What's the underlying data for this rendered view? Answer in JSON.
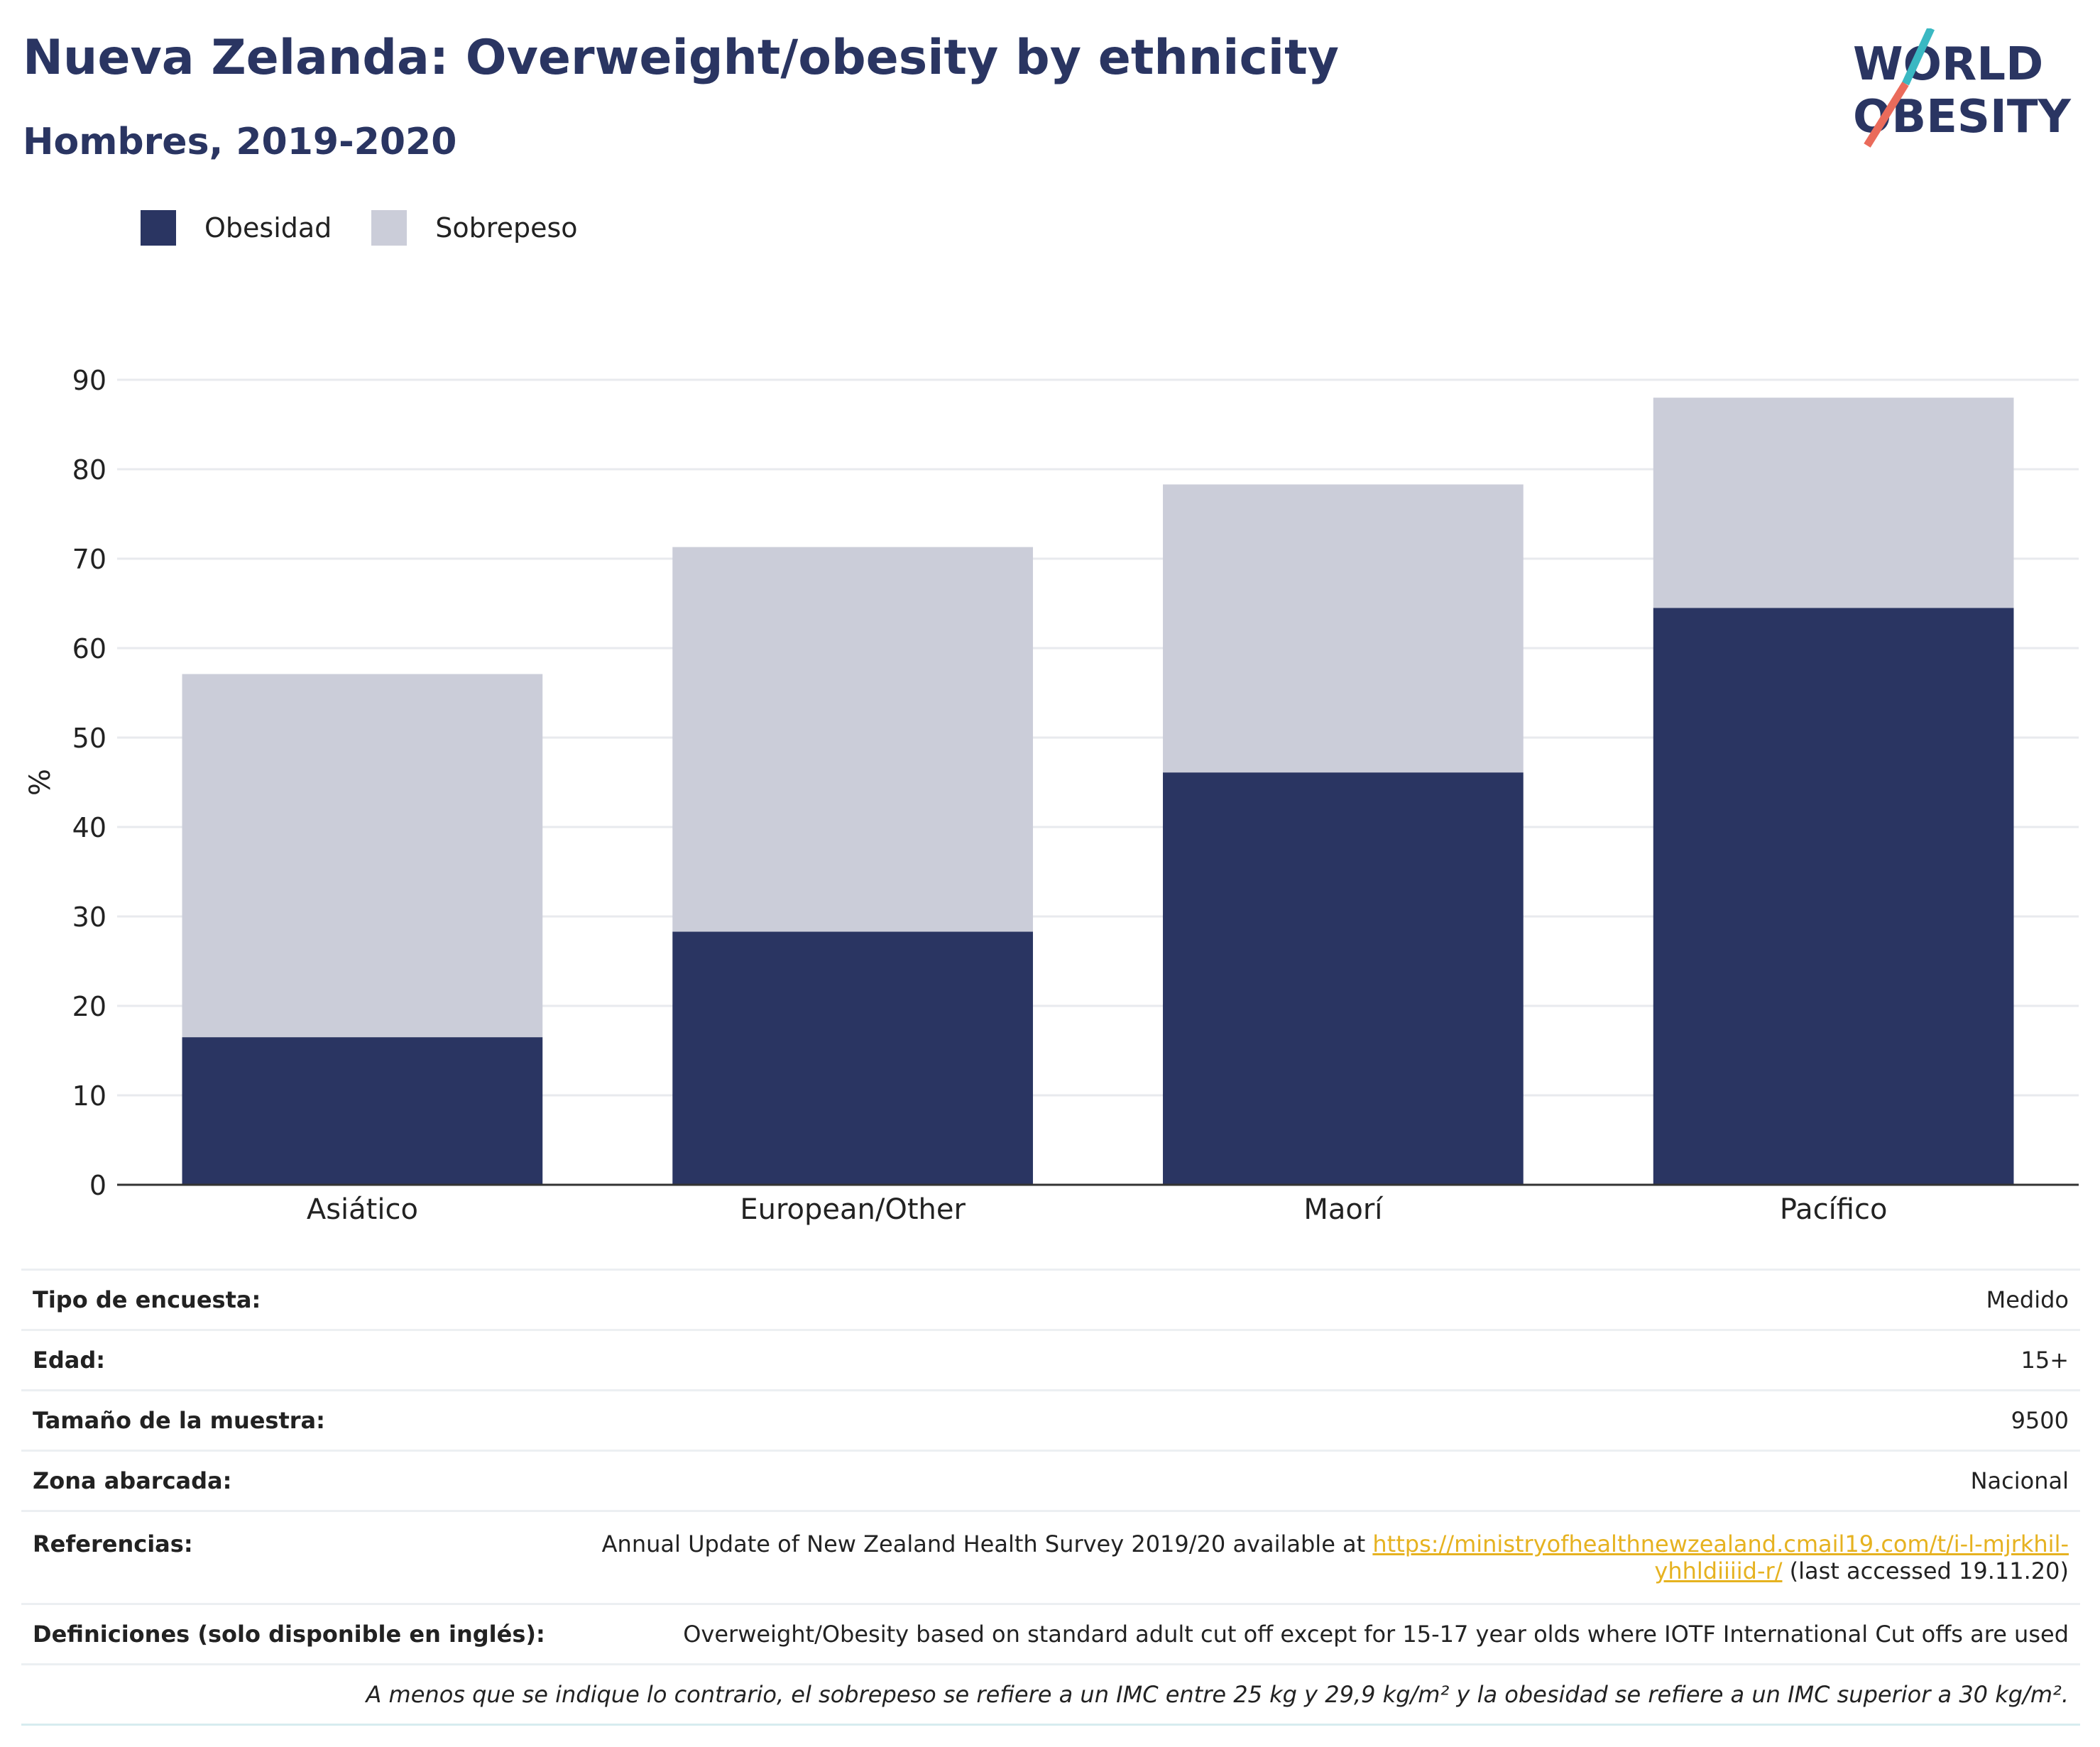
{
  "header": {
    "title": "Nueva Zelanda: Overweight/obesity by ethnicity",
    "subtitle": "Hombres, 2019-2020"
  },
  "logo": {
    "line1": "WORLD",
    "line2": "OBESITY",
    "accent_teal": "#3ab8c2",
    "accent_coral": "#ea6b5b",
    "text_color": "#2a3562"
  },
  "legend": {
    "items": [
      {
        "label": "Obesidad",
        "color": "#2a3562"
      },
      {
        "label": "Sobrepeso",
        "color": "#cbcdd9"
      }
    ]
  },
  "chart_data": {
    "type": "bar",
    "stacked": true,
    "categories": [
      "Asiático",
      "European/Other",
      "Maorí",
      "Pacífico"
    ],
    "series": [
      {
        "name": "Obesidad",
        "values": [
          16.5,
          28.3,
          46.1,
          64.5
        ],
        "color": "#2a3562"
      },
      {
        "name": "Sobrepeso",
        "values": [
          40.6,
          43.0,
          32.2,
          23.5
        ],
        "color": "#cbcdd9"
      }
    ],
    "ylabel": "%",
    "ylim": [
      0,
      90
    ],
    "yticks": [
      0,
      10,
      20,
      30,
      40,
      50,
      60,
      70,
      80,
      90
    ],
    "grid": true,
    "legend_position": "top-left"
  },
  "info": {
    "rows": [
      {
        "key": "Tipo de encuesta:",
        "value": "Medido"
      },
      {
        "key": "Edad:",
        "value": "15+"
      },
      {
        "key": "Tamaño de la muestra:",
        "value": "9500"
      },
      {
        "key": "Zona abarcada:",
        "value": "Nacional"
      }
    ],
    "references": {
      "key": "Referencias:",
      "text_before": "Annual Update of New Zealand Health Survey 2019/20 available at ",
      "link_line1": "https://ministryofhealthnewzealand.cmail19.com/t/i-l-mjrkhil-",
      "link_line2": "yhhldiiiid-r/",
      "text_after": " (last accessed 19.11.20)"
    },
    "definitions": {
      "key": "Definiciones (solo disponible en inglés):",
      "value": "Overweight/Obesity based on standard adult cut off except for 15-17 year olds where IOTF International Cut offs are used"
    },
    "note": "A menos que se indique lo contrario, el sobrepeso se refiere a un IMC entre 25 kg y 29,9 kg/m² y la obesidad se refiere a un IMC superior a 30 kg/m²."
  }
}
